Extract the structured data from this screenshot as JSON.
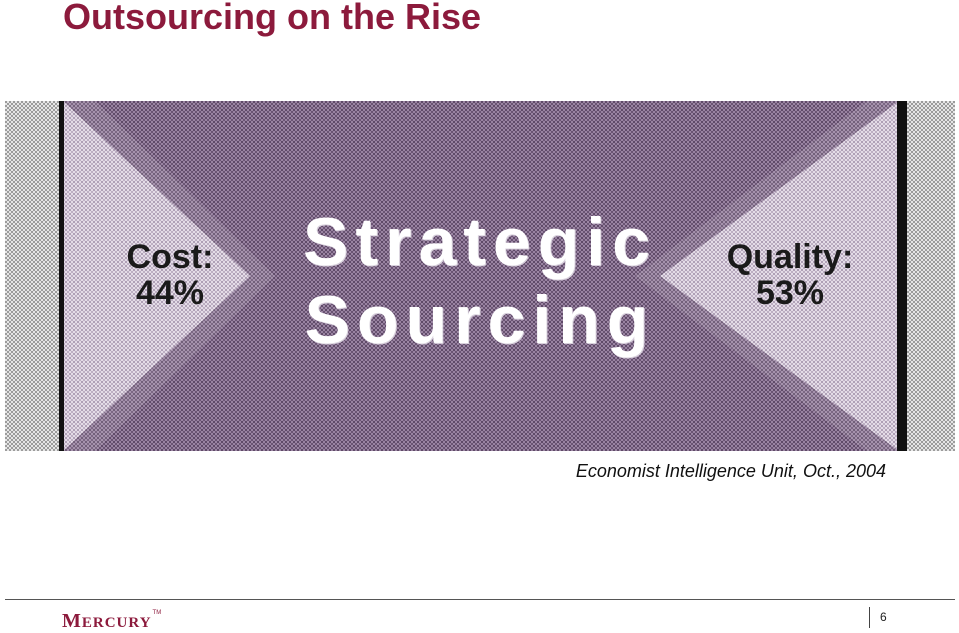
{
  "slide": {
    "title": "Outsourcing on the Rise"
  },
  "banner": {
    "left": {
      "line1": "Cost:",
      "line2": "44%"
    },
    "center": {
      "line1": "Strategic",
      "line2": "Sourcing"
    },
    "right": {
      "line1": "Quality:",
      "line2": "53%"
    }
  },
  "source": "Economist Intelligence Unit, Oct., 2004",
  "footer": {
    "logo": "Mercury",
    "logo_first_letter": "M",
    "logo_rest": "ERCURY",
    "trademark": "TM",
    "page_number": "6"
  },
  "colors": {
    "title": "#8c1a3c",
    "banner_purple": "#7a5d85",
    "banner_light": "#cfc3d5",
    "side_gray": "#d4d4d4",
    "logo": "#8c1a3c"
  }
}
